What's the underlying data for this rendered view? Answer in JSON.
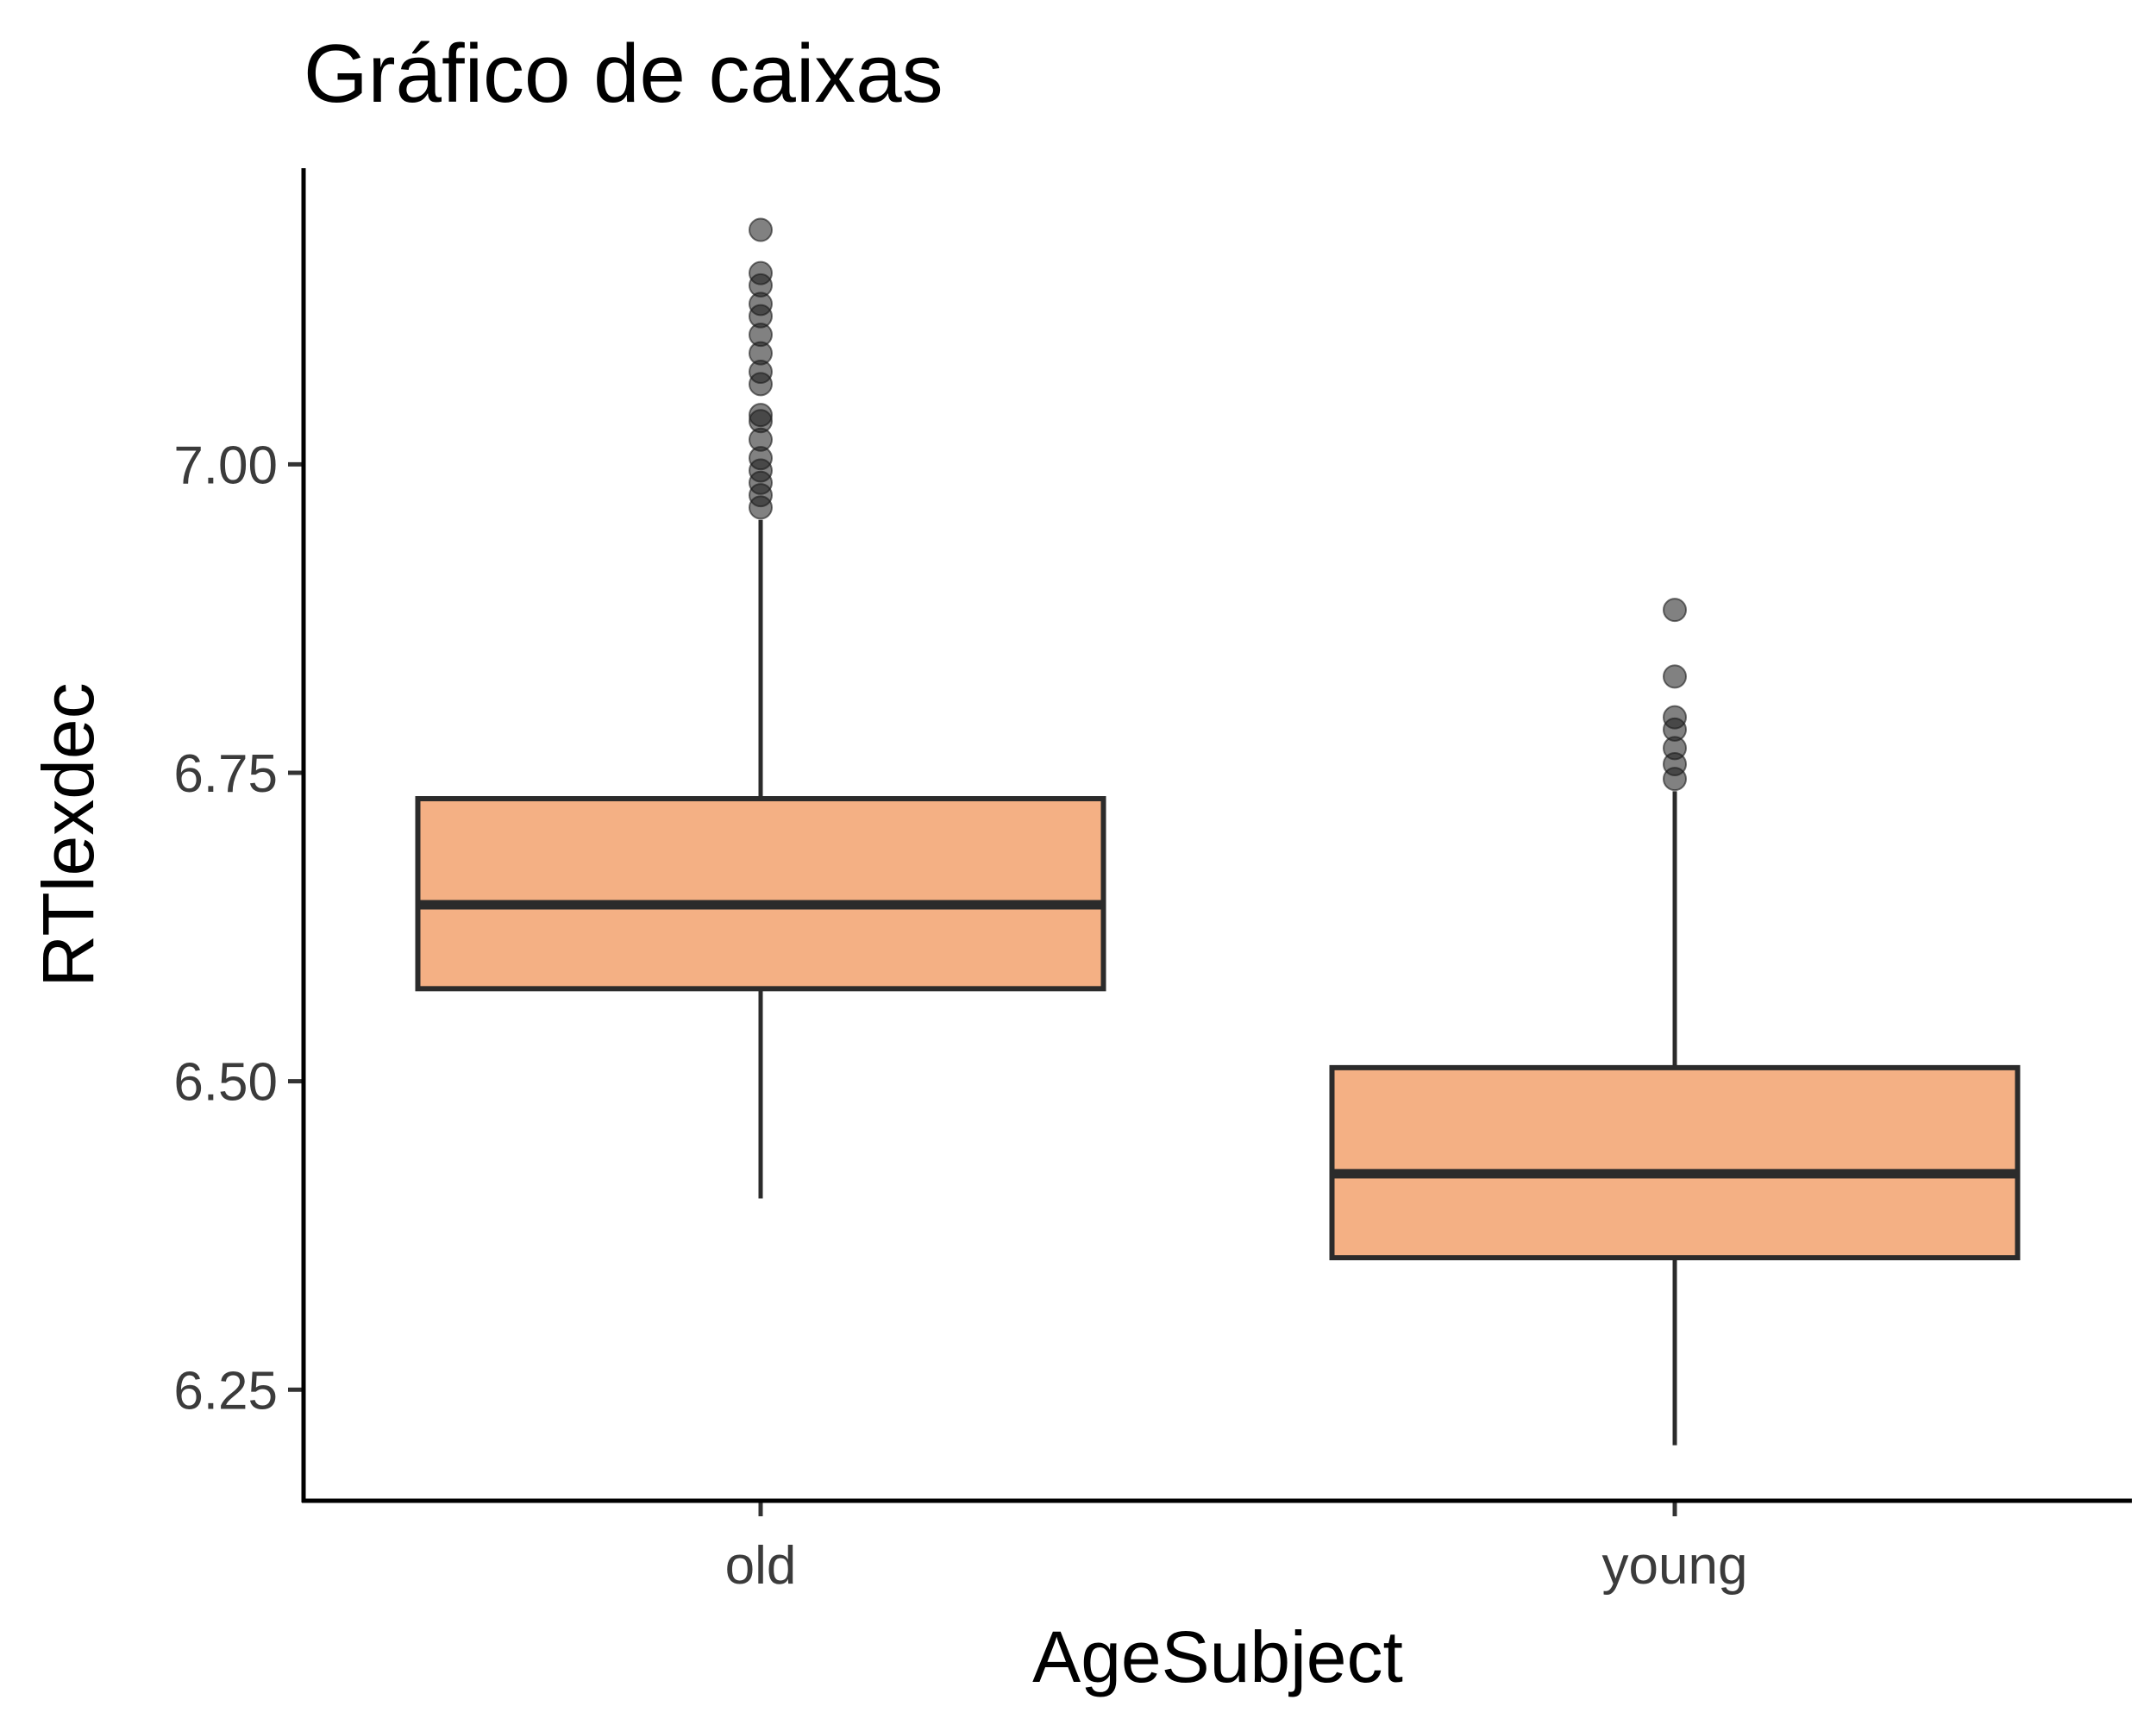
{
  "chart_data": {
    "type": "boxplot",
    "title": "Gráfico de caixas",
    "xlabel": "AgeSubject",
    "ylabel": "RTlexdec",
    "categories": [
      "old",
      "young"
    ],
    "ylim": [
      6.16,
      7.24
    ],
    "yticks": [
      6.25,
      6.5,
      6.75,
      7.0
    ],
    "ytick_labels": [
      "6.25",
      "6.50",
      "6.75",
      "7.00"
    ],
    "grid": false,
    "box_fill": "#F4B084",
    "box_stroke": "#2b2b2b",
    "boxes": [
      {
        "category": "old",
        "whisker_low": 6.405,
        "q1": 6.575,
        "median": 6.643,
        "q3": 6.729,
        "whisker_high": 6.955,
        "outliers": [
          7.19,
          7.155,
          7.145,
          7.13,
          7.12,
          7.105,
          7.09,
          7.075,
          7.065,
          7.04,
          7.035,
          7.02,
          7.005,
          6.995,
          6.985,
          6.975,
          6.965
        ]
      },
      {
        "category": "young",
        "whisker_low": 6.205,
        "q1": 6.357,
        "median": 6.425,
        "q3": 6.511,
        "whisker_high": 6.735,
        "outliers": [
          6.882,
          6.828,
          6.795,
          6.785,
          6.77,
          6.757,
          6.745
        ]
      }
    ]
  }
}
